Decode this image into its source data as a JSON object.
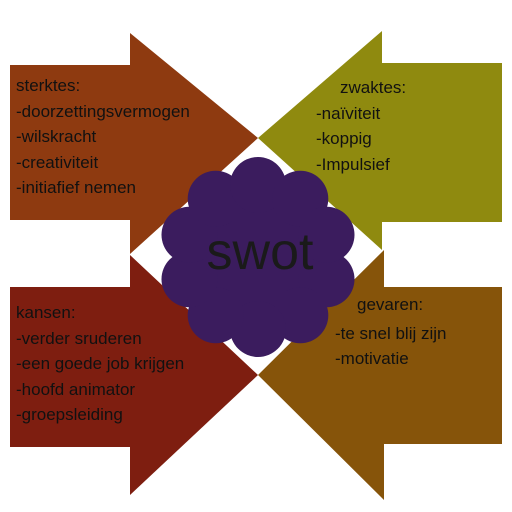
{
  "colors": {
    "strengths": "#8e3a10",
    "weaknesses": "#8f8a0f",
    "opportunities": "#7e1e10",
    "threats": "#86540a",
    "center": "#3b1c5e"
  },
  "center": {
    "title": "swot"
  },
  "strengths": {
    "heading": "sterktes:",
    "items": [
      "-doorzettingsvermogen",
      "-wilskracht",
      "-creativiteit",
      "-initiafief nemen"
    ]
  },
  "weaknesses": {
    "heading": "zwaktes:",
    "items": [
      "-naïviteit",
      "-koppig",
      "-Impulsief"
    ]
  },
  "opportunities": {
    "heading": "kansen:",
    "items": [
      "-verder sruderen",
      "-een goede job krijgen",
      "-hoofd animator",
      "-groepsleiding"
    ]
  },
  "threats": {
    "heading": "gevaren:",
    "items": [
      "-te snel blij zijn",
      "-motivatie"
    ]
  }
}
